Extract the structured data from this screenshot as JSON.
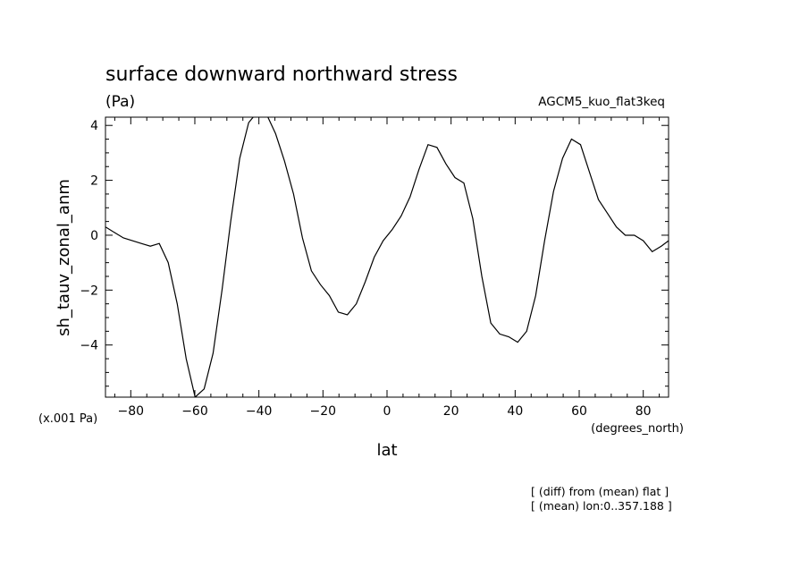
{
  "chart_data": {
    "type": "line",
    "title": "surface downward northward stress",
    "units": "(Pa)",
    "dataset": "AGCM5_kuo_flat3keq",
    "ylabel": "sh_tauv_zonal_anm",
    "xlabel": "lat",
    "x_units": "(degrees_north)",
    "y_scale_note": "(x.001 Pa)",
    "notes": [
      "[ (diff) from (mean) flat ]",
      "[ (mean) lon:0..357.188 ]"
    ],
    "xlim": [
      -87.9,
      87.9
    ],
    "ylim": [
      4.3,
      -5.9
    ],
    "y_inverted": true,
    "xticks": [
      -80,
      -60,
      -40,
      -20,
      0,
      20,
      40,
      60,
      80
    ],
    "yticks": [
      4,
      2,
      0,
      -2,
      -4
    ],
    "ytick_labels": [
      "4",
      "2",
      "0",
      "−2",
      "−4"
    ],
    "xtick_labels": [
      "−80",
      "−60",
      "−40",
      "−20",
      "0",
      "20",
      "40",
      "60",
      "80"
    ],
    "grid": false,
    "series": [
      {
        "x": [
          -87.9,
          -85.1,
          -82.3,
          -79.5,
          -76.7,
          -73.9,
          -71.1,
          -68.3,
          -65.5,
          -62.7,
          -59.9,
          -57.1,
          -54.3,
          -51.5,
          -48.8,
          -46.0,
          -43.2,
          -40.4,
          -37.6,
          -34.8,
          -32.0,
          -29.2,
          -26.4,
          -23.6,
          -20.8,
          -18.0,
          -15.2,
          -12.4,
          -9.6,
          -6.8,
          -4.0,
          -1.2,
          1.6,
          4.4,
          7.2,
          10.0,
          12.8,
          15.6,
          18.4,
          21.2,
          24.0,
          26.8,
          29.6,
          32.4,
          35.2,
          38.0,
          40.8,
          43.6,
          46.4,
          49.2,
          52.0,
          54.8,
          57.6,
          60.4,
          63.2,
          66.0,
          68.8,
          71.6,
          74.4,
          77.2,
          80.0,
          82.8,
          85.6,
          87.9
        ],
        "y": [
          0.3,
          0.1,
          -0.1,
          -0.2,
          -0.3,
          -0.4,
          -0.3,
          -1.0,
          -2.5,
          -4.5,
          -5.9,
          -5.6,
          -4.3,
          -2.0,
          0.5,
          2.8,
          4.1,
          4.5,
          4.4,
          3.7,
          2.7,
          1.5,
          -0.1,
          -1.3,
          -1.8,
          -2.2,
          -2.8,
          -2.9,
          -2.5,
          -1.7,
          -0.8,
          -0.2,
          0.2,
          0.7,
          1.4,
          2.4,
          3.3,
          3.2,
          2.6,
          2.1,
          1.9,
          0.6,
          -1.5,
          -3.2,
          -3.6,
          -3.7,
          -3.9,
          -3.5,
          -2.2,
          -0.2,
          1.6,
          2.8,
          3.5,
          3.3,
          2.3,
          1.3,
          0.8,
          0.3,
          0.0,
          0.0,
          -0.2,
          -0.6,
          -0.4,
          -0.2
        ]
      }
    ]
  }
}
